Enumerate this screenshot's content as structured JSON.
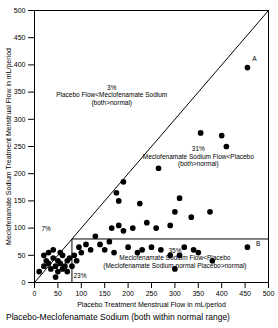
{
  "chart_data": {
    "type": "scatter",
    "x_label": "Placebo Treatment Menstrual Flow in mL/period",
    "y_label": "Meclofenamate Sodium Treatment Menstrual Flow in mL/period",
    "caption": "Placebo-Meclofenamate Sodium (both within normal range)",
    "xlim": [
      0,
      500
    ],
    "ylim": [
      0,
      500
    ],
    "xticks": [
      0,
      50,
      100,
      150,
      200,
      250,
      300,
      350,
      400,
      450,
      500
    ],
    "yticks": [
      0,
      50,
      100,
      150,
      200,
      250,
      300,
      350,
      400,
      450,
      500
    ],
    "grid": false,
    "color": "#000000",
    "marker": "circle",
    "x": [
      455,
      400,
      355,
      410,
      265,
      190,
      175,
      180,
      225,
      240,
      260,
      290,
      310,
      300,
      335,
      375,
      180,
      190,
      210,
      165,
      130,
      140,
      150,
      160,
      110,
      120,
      100,
      95,
      170,
      200,
      220,
      230,
      250,
      270,
      290,
      310,
      320,
      340,
      350,
      380,
      300,
      455,
      10,
      20,
      25,
      30,
      35,
      40,
      45,
      50,
      55,
      60,
      65,
      70,
      75,
      30,
      40,
      20,
      50,
      60,
      45,
      70,
      55,
      80,
      85,
      90
    ],
    "y": [
      395,
      270,
      275,
      250,
      210,
      185,
      165,
      150,
      145,
      110,
      100,
      105,
      155,
      130,
      120,
      130,
      105,
      95,
      100,
      100,
      85,
      70,
      60,
      75,
      70,
      60,
      55,
      65,
      55,
      65,
      55,
      60,
      65,
      60,
      50,
      50,
      65,
      60,
      55,
      40,
      25,
      65,
      20,
      30,
      40,
      35,
      25,
      45,
      30,
      40,
      35,
      50,
      30,
      40,
      45,
      55,
      60,
      50,
      20,
      25,
      10,
      20,
      55,
      30,
      50,
      40
    ],
    "reference_lines": [
      {
        "x1": 0,
        "y1": 0,
        "x2": 500,
        "y2": 500
      },
      {
        "x1": 80,
        "y1": 80,
        "x2": 500,
        "y2": 80
      },
      {
        "x1": 80,
        "y1": 0,
        "x2": 80,
        "y2": 80
      }
    ],
    "annotations": [
      {
        "text": "3%\nPlacebo Flow<Meclofenamate Sodium\n(both>normal)",
        "x": 165,
        "y": 345
      },
      {
        "text": "31%\nMeclofenamate Sodium Flow<Placebo\n(both>normal)",
        "x": 350,
        "y": 232
      },
      {
        "text": "35%\nMeclofenamate Sodium Flow<Placebo\n(Meclofenamate Sodium normal Placebo>normal)",
        "x": 300,
        "y": 45
      },
      {
        "text": "7%",
        "x": 25,
        "y": 100
      },
      {
        "text": "23%",
        "x": 97,
        "y": 12
      },
      {
        "text": "A",
        "x": 470,
        "y": 412
      },
      {
        "text": "B",
        "x": 478,
        "y": 72
      }
    ]
  }
}
